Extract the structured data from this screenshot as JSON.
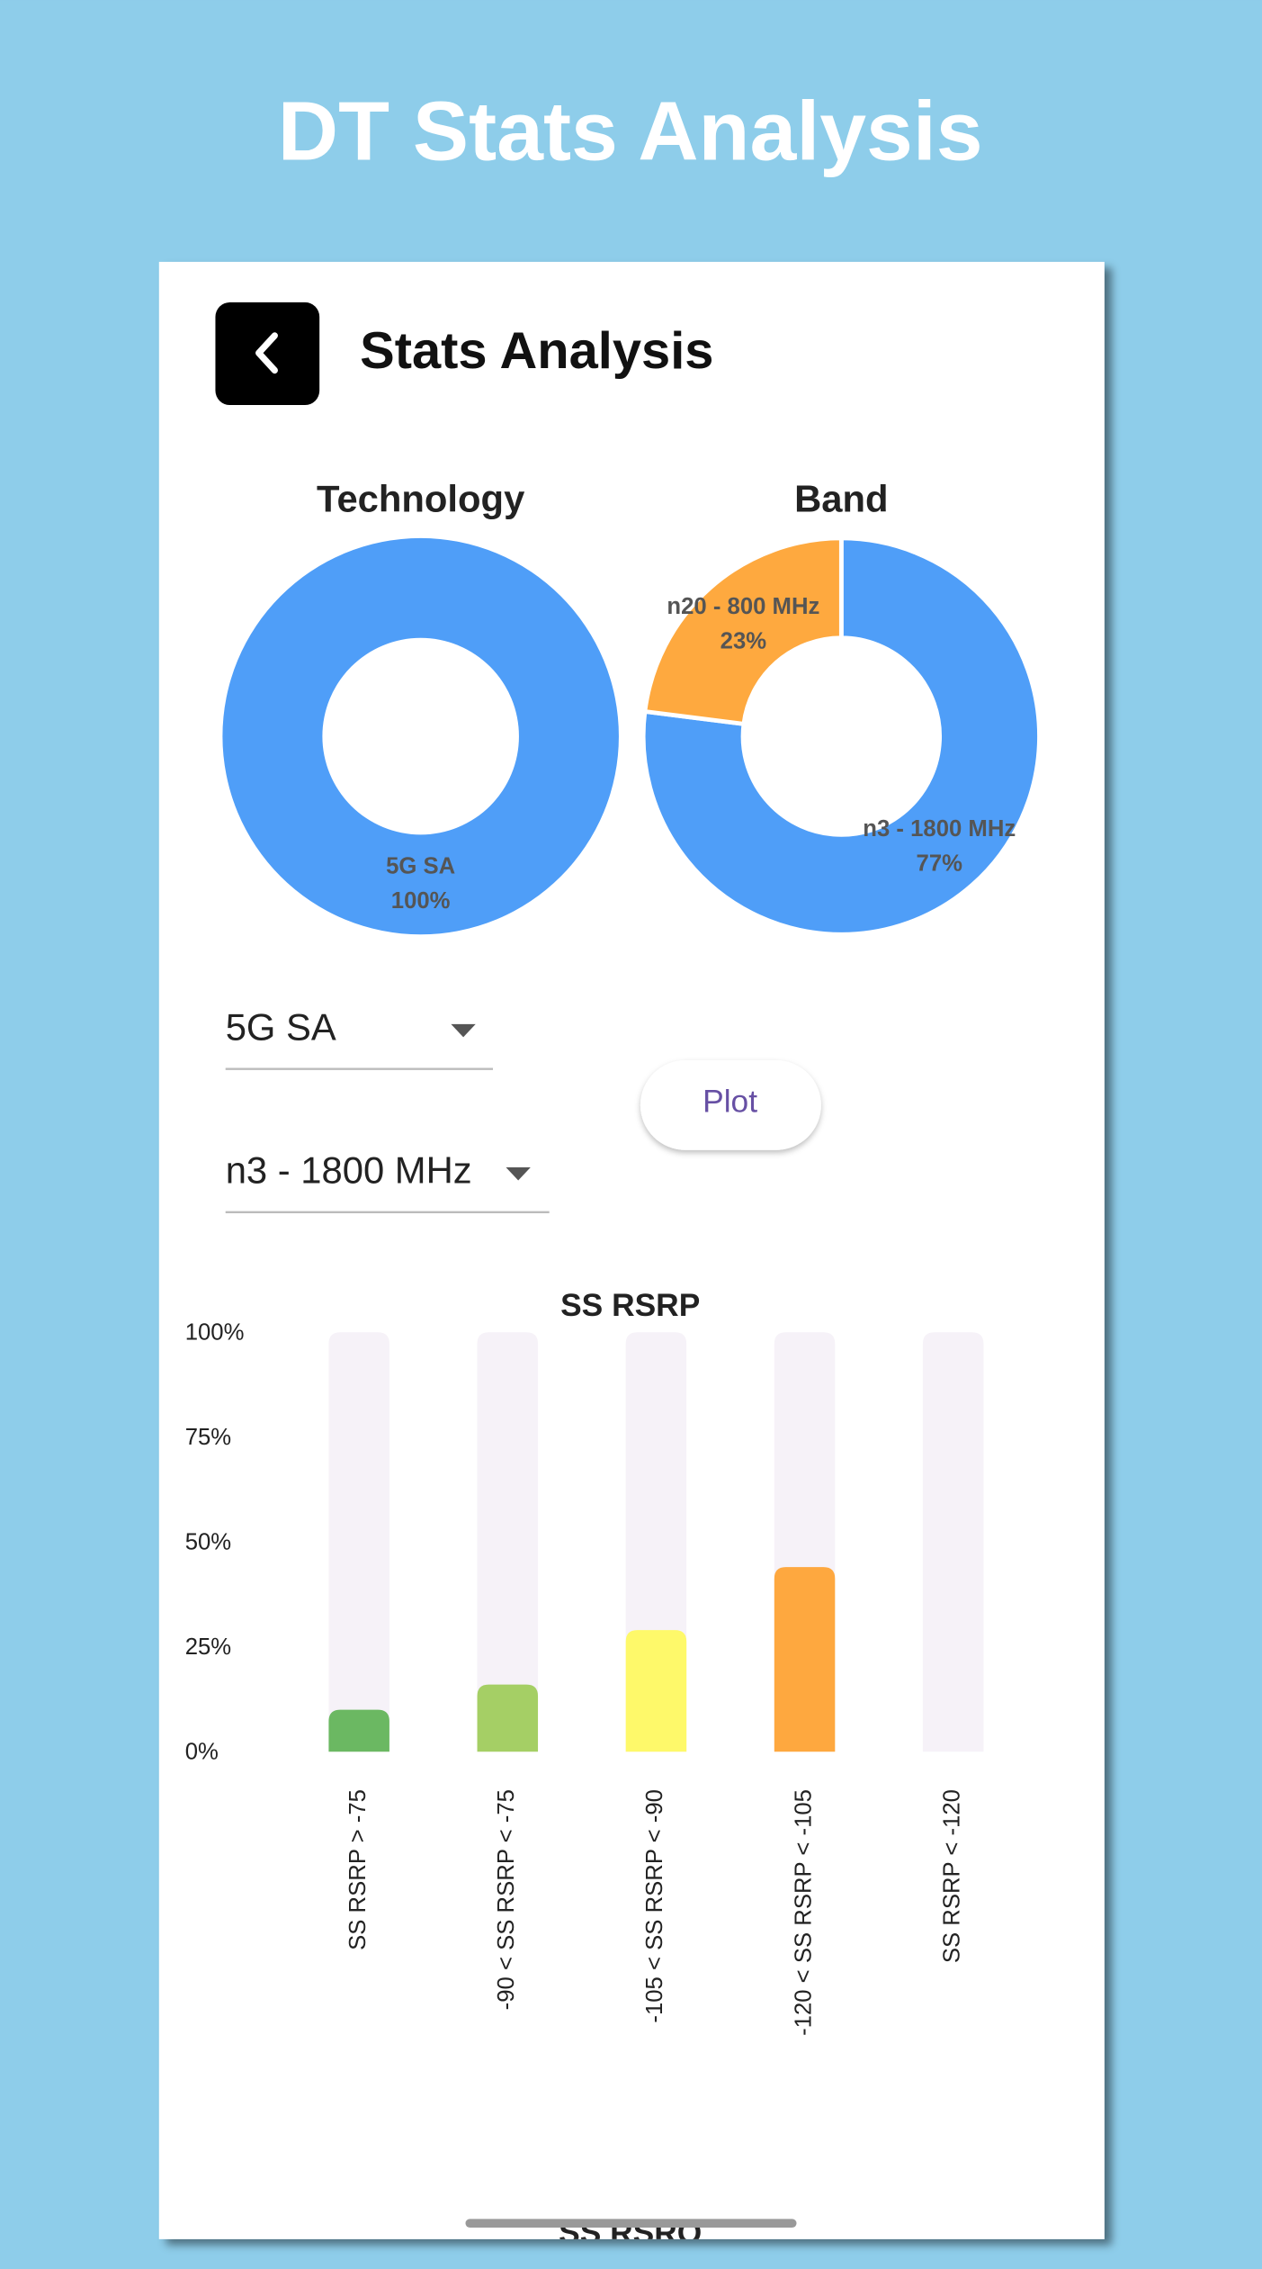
{
  "header": {
    "title": "DT Stats Analysis"
  },
  "app_bar": {
    "title": "Stats Analysis"
  },
  "chart_data": [
    {
      "type": "pie",
      "title": "Technology",
      "categories": [
        "5G SA"
      ],
      "values": [
        100
      ],
      "value_labels": [
        "100%"
      ],
      "colors": [
        "#4f9ef8"
      ]
    },
    {
      "type": "pie",
      "title": "Band",
      "categories": [
        "n3 - 1800 MHz",
        "n20 - 800 MHz"
      ],
      "values": [
        77,
        23
      ],
      "value_labels": [
        "77%",
        "23%"
      ],
      "colors": [
        "#4f9ef8",
        "#fea93f"
      ]
    },
    {
      "type": "bar",
      "title": "SS RSRP",
      "categories": [
        "SS RSRP > -75",
        "-90 < SS RSRP < -75",
        "-105 < SS RSRP < -90",
        "-120 < SS RSRP < -105",
        "SS RSRP < -120"
      ],
      "values": [
        10,
        16,
        29,
        44,
        0
      ],
      "colors": [
        "#6bb862",
        "#a5cf65",
        "#fef96a",
        "#fea83f",
        "#c9c9c9"
      ],
      "ylim": [
        0,
        100
      ],
      "yticks": [
        {
          "value": 0,
          "label": "0%"
        },
        {
          "value": 25,
          "label": "25%"
        },
        {
          "value": 50,
          "label": "50%"
        },
        {
          "value": 75,
          "label": "75%"
        },
        {
          "value": 100,
          "label": "100%"
        }
      ],
      "grid": false
    }
  ],
  "controls": {
    "technology_dropdown": "5G SA",
    "band_dropdown": "n3 - 1800 MHz",
    "plot_button": "Plot"
  },
  "footer": {
    "next_chart_title": "SS RSRQ"
  }
}
